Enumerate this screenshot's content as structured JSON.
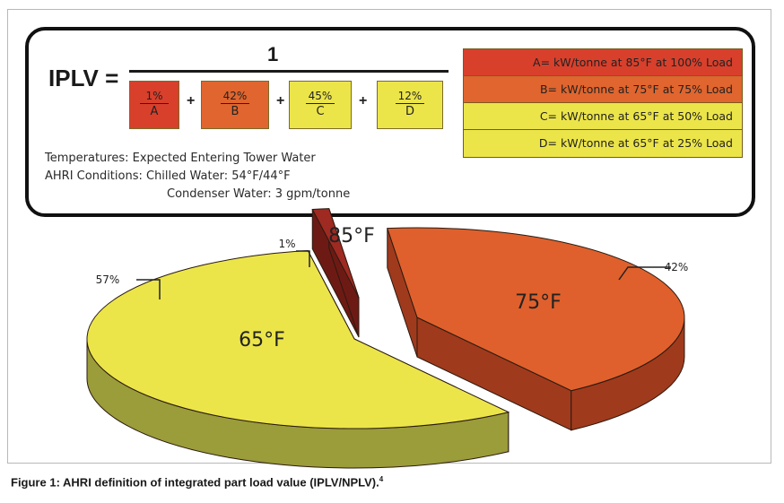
{
  "formula": {
    "label": "IPLV =",
    "numerator": "1",
    "terms": [
      {
        "percent": "1%",
        "letter": "A",
        "color": "#d8402c"
      },
      {
        "percent": "42%",
        "letter": "B",
        "color": "#e0652e"
      },
      {
        "percent": "45%",
        "letter": "C",
        "color": "#ece54a"
      },
      {
        "percent": "12%",
        "letter": "D",
        "color": "#ece54a"
      }
    ],
    "plus": "+",
    "notes": {
      "line1": "Temperatures: Expected Entering Tower Water",
      "line2": "AHRI Conditions:  Chilled Water: 54°F/44°F",
      "line3": "Condenser Water: 3 gpm/tonne"
    }
  },
  "legend": [
    {
      "text": "A= kW/tonne at 85°F at 100% Load",
      "color": "#d8402c"
    },
    {
      "text": "B= kW/tonne at 75°F at 75% Load",
      "color": "#e0652e"
    },
    {
      "text": "C= kW/tonne at 65°F at 50% Load",
      "color": "#ece54a"
    },
    {
      "text": "D= kW/tonne at 65°F at 25% Load",
      "color": "#ece54a"
    }
  ],
  "chart_data": {
    "type": "pie",
    "title": "",
    "slices": [
      {
        "label": "85°F",
        "value": 1,
        "value_label": "1%",
        "top_color": "#9e2a22",
        "side_color": "#6e1a14"
      },
      {
        "label": "75°F",
        "value": 42,
        "value_label": "42%",
        "top_color": "#df602c",
        "side_color": "#a03a1c"
      },
      {
        "label": "65°F",
        "value": 57,
        "value_label": "57%",
        "top_color": "#ece54a",
        "side_color": "#9b9c3a"
      }
    ]
  },
  "caption": {
    "text": "Figure 1: AHRI definition of integrated part load value (IPLV/NPLV).",
    "superscript": "4"
  }
}
